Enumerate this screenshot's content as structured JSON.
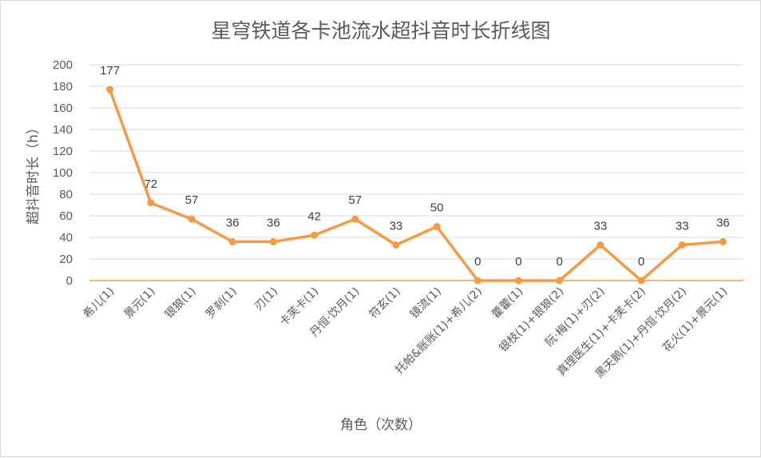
{
  "chart_data": {
    "type": "line",
    "title": "星穹铁道各卡池流水超抖音时长折线图",
    "xlabel": "角色（次数）",
    "ylabel": "超抖音时长（h）",
    "ylim": [
      0,
      200
    ],
    "yticks": [
      0,
      20,
      40,
      60,
      80,
      100,
      120,
      140,
      160,
      180,
      200
    ],
    "grid": true,
    "legend": "none",
    "categories": [
      "希儿(1)",
      "景元(1)",
      "银狼(1)",
      "罗刹(1)",
      "刃(1)",
      "卡芙卡(1)",
      "丹恒·饮月(1)",
      "符玄(1)",
      "镜流(1)",
      "托帕&账账(1)+希儿(2)",
      "藿藿(1)",
      "银枝(1)+银狼(2)",
      "阮·梅(1)+刃(2)",
      "真理医生(1)+卡芙卡(2)",
      "黑天鹅(1)+丹恒·饮月(2)",
      "花火(1)+景元(1)"
    ],
    "series": [
      {
        "values": [
          177,
          72,
          57,
          36,
          36,
          42,
          57,
          33,
          50,
          0,
          0,
          0,
          33,
          0,
          33,
          36
        ]
      }
    ],
    "colors": {
      "line": "#f59a42",
      "gridline": "#d9d9d9",
      "zero_axis": "#f59a42"
    }
  }
}
